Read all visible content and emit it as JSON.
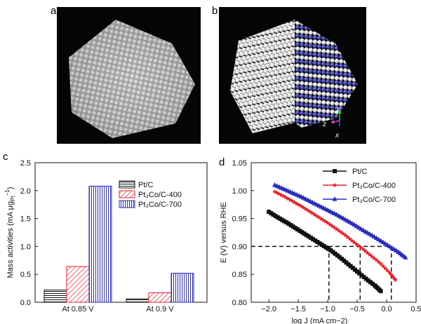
{
  "panels": {
    "a": "a",
    "b": "b",
    "c": "c",
    "d": "d"
  },
  "panel_b_axes": {
    "y": "y",
    "z": "z",
    "x": "x"
  },
  "colors": {
    "black": "#111111",
    "red": "#e0202a",
    "blue": "#2a2ab8",
    "atom_white": "#f2f2f2",
    "atom_blue": "#3a3a9e"
  },
  "chart_data": [
    {
      "type": "bar",
      "ylabel_main": "Mass activities (mA μg",
      "ylabel_sub": "Pt",
      "ylabel_sup": "−1",
      "ylabel_end": ")",
      "categories": [
        "At 0.85 V",
        "At 0.9 V"
      ],
      "ylim": [
        0,
        2.5
      ],
      "yticks": [
        "0.0",
        "0.5",
        "1.0",
        "1.5",
        "2.0",
        "2.5"
      ],
      "series": [
        {
          "name": "Pt/C",
          "values": [
            0.22,
            0.06
          ],
          "pattern": "hlines",
          "color": "#111111"
        },
        {
          "name": "Pt3Co/C-400",
          "values": [
            0.64,
            0.17
          ],
          "pattern": "diag",
          "color": "#e0202a"
        },
        {
          "name": "Pt3Co/C-700",
          "values": [
            2.08,
            0.52
          ],
          "pattern": "vlines",
          "color": "#2a2ab8"
        }
      ],
      "legend": [
        "Pt/C",
        "Pt3Co/C-400",
        "Pt3Co/C-700"
      ]
    },
    {
      "type": "line",
      "ylabel": "E (V) versus RHE",
      "xlabel": "log J (mA cm−2)",
      "xlim": [
        -2.3,
        0.5
      ],
      "ylim": [
        0.8,
        1.05
      ],
      "xticks": [
        "−2.0",
        "−1.5",
        "−1.0",
        "−0.5",
        "0.0",
        "0.5"
      ],
      "yticks": [
        "0.80",
        "0.85",
        "0.90",
        "0.95",
        "1.00",
        "1.05"
      ],
      "reference_line": 0.9,
      "reference_x": [
        -0.98,
        -0.45,
        0.08
      ],
      "series": [
        {
          "name": "Pt/C",
          "marker": "square",
          "color": "#111111",
          "x": [
            -2.0,
            -1.85,
            -1.7,
            -1.55,
            -1.4,
            -1.25,
            -1.1,
            -0.95,
            -0.8,
            -0.65,
            -0.5,
            -0.35,
            -0.2,
            -0.1
          ],
          "y": [
            0.962,
            0.952,
            0.943,
            0.933,
            0.923,
            0.913,
            0.903,
            0.893,
            0.881,
            0.868,
            0.855,
            0.842,
            0.83,
            0.82
          ]
        },
        {
          "name": "Pt3Co/C-400",
          "marker": "star",
          "color": "#e0202a",
          "x": [
            -1.9,
            -1.75,
            -1.6,
            -1.45,
            -1.3,
            -1.15,
            -1.0,
            -0.85,
            -0.7,
            -0.55,
            -0.4,
            -0.25,
            -0.1,
            0.05,
            0.15
          ],
          "y": [
            0.998,
            0.99,
            0.981,
            0.972,
            0.962,
            0.952,
            0.942,
            0.931,
            0.92,
            0.907,
            0.895,
            0.882,
            0.869,
            0.853,
            0.84
          ]
        },
        {
          "name": "Pt3Co/C-700",
          "marker": "triangle",
          "color": "#2a2ab8",
          "x": [
            -1.9,
            -1.75,
            -1.6,
            -1.45,
            -1.3,
            -1.15,
            -1.0,
            -0.85,
            -0.7,
            -0.55,
            -0.4,
            -0.25,
            -0.1,
            0.05,
            0.2,
            0.32
          ],
          "y": [
            1.01,
            1.003,
            0.996,
            0.989,
            0.981,
            0.973,
            0.965,
            0.957,
            0.948,
            0.939,
            0.929,
            0.92,
            0.91,
            0.9,
            0.89,
            0.88
          ]
        }
      ]
    }
  ]
}
